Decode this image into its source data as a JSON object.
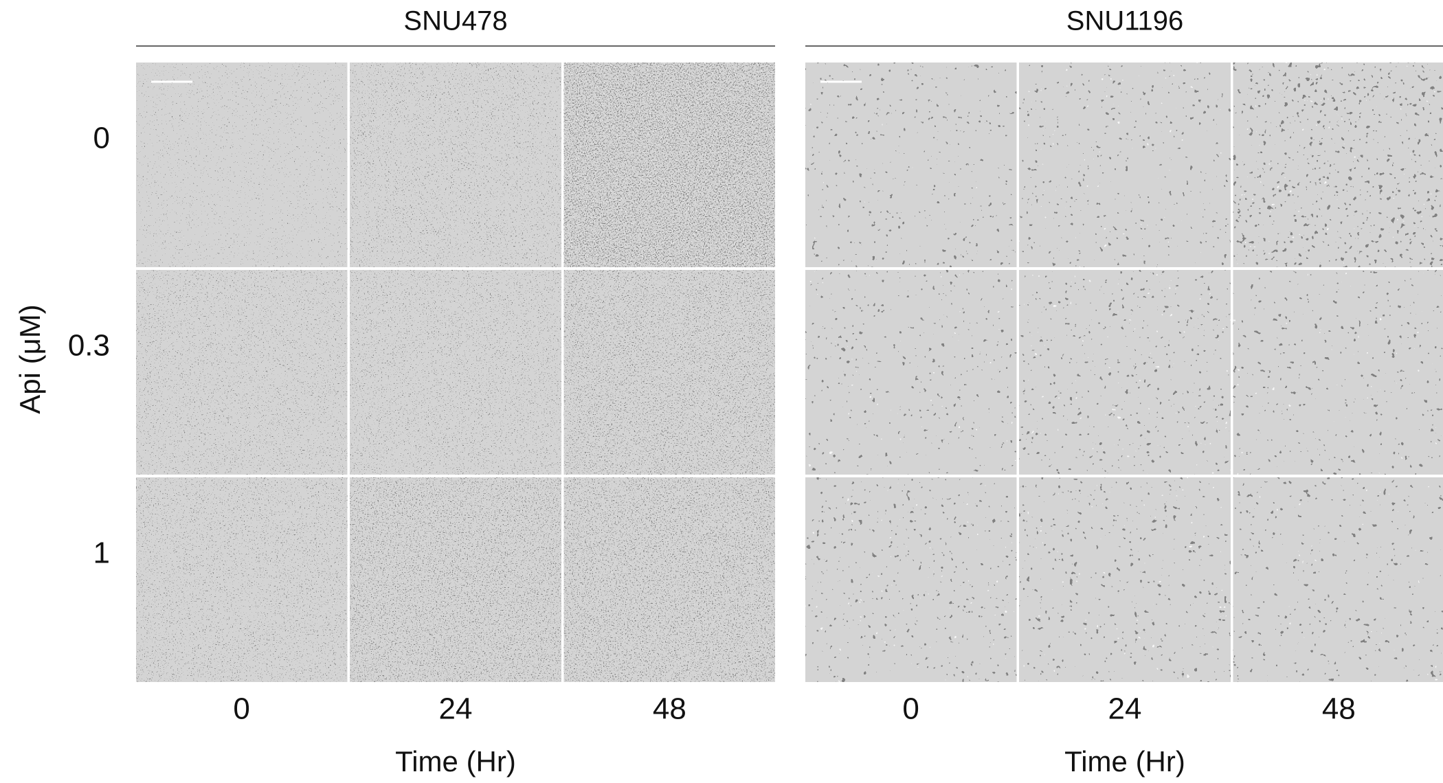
{
  "y_label": "Api (μM)",
  "rows": [
    "0",
    "0.3",
    "1"
  ],
  "panels": [
    {
      "title": "SNU478",
      "columns": [
        "0",
        "24",
        "48"
      ],
      "x_label": "Time (Hr)"
    },
    {
      "title": "SNU1196",
      "columns": [
        "0",
        "24",
        "48"
      ],
      "x_label": "Time (Hr)"
    }
  ]
}
